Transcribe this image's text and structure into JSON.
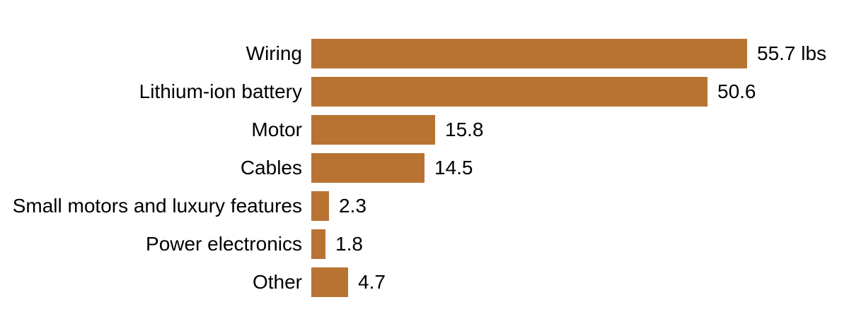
{
  "chart": {
    "background_color": "#ffffff",
    "bar_color": "#b87333",
    "text_color": "#000000"
  },
  "chart_data": {
    "type": "bar",
    "orientation": "horizontal",
    "title": "",
    "xlabel": "",
    "ylabel": "",
    "unit": "lbs",
    "categories": [
      "Wiring",
      "Lithium-ion battery",
      "Motor",
      "Cables",
      "Small motors and luxury features",
      "Power electronics",
      "Other"
    ],
    "values": [
      55.7,
      50.6,
      15.8,
      14.5,
      2.3,
      1.8,
      4.7
    ],
    "value_labels": [
      "55.7 lbs",
      "50.6",
      "15.8",
      "14.5",
      "2.3",
      "1.8",
      "4.7"
    ],
    "xlim": [
      0,
      60
    ],
    "grid": false,
    "legend": "none",
    "axes_visible": false,
    "bar_color": "#b87333"
  }
}
